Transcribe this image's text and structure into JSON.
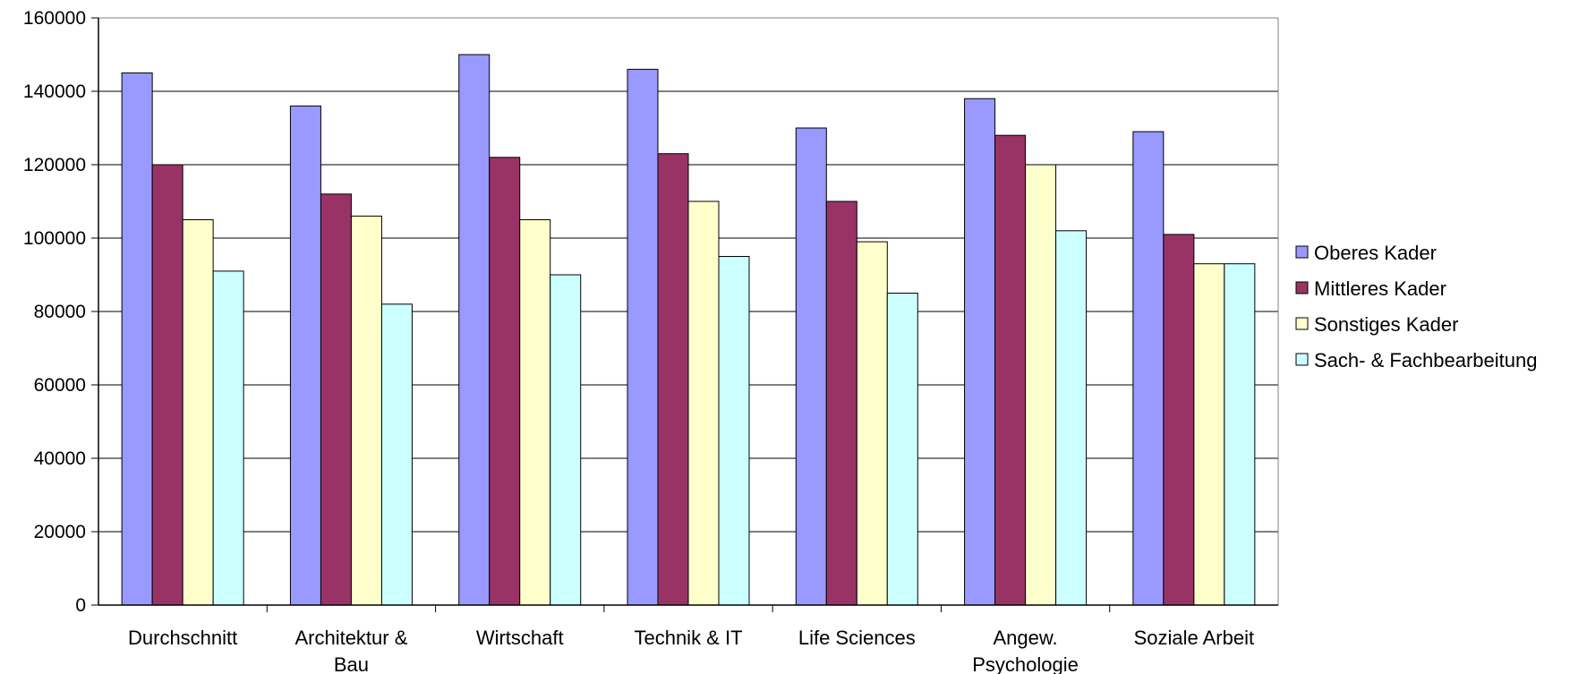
{
  "chart_data": {
    "type": "bar",
    "categories": [
      [
        "Durchschnitt"
      ],
      [
        "Architektur &",
        "Bau"
      ],
      [
        "Wirtschaft"
      ],
      [
        "Technik & IT"
      ],
      [
        "Life Sciences"
      ],
      [
        "Angew.",
        "Psychologie"
      ],
      [
        "Soziale Arbeit"
      ]
    ],
    "series": [
      {
        "name": "Oberes Kader",
        "color": "#9999FF",
        "values": [
          145000,
          136000,
          150000,
          146000,
          130000,
          138000,
          129000
        ]
      },
      {
        "name": "Mittleres Kader",
        "color": "#993366",
        "values": [
          120000,
          112000,
          122000,
          123000,
          110000,
          128000,
          101000
        ]
      },
      {
        "name": "Sonstiges Kader",
        "color": "#FFFFCC",
        "values": [
          105000,
          106000,
          105000,
          110000,
          99000,
          120000,
          93000
        ]
      },
      {
        "name": "Sach- & Fachbearbeitung",
        "color": "#CCFFFF",
        "values": [
          91000,
          82000,
          90000,
          95000,
          85000,
          102000,
          93000
        ]
      }
    ],
    "yticks": [
      "0",
      "20000",
      "40000",
      "60000",
      "80000",
      "100000",
      "120000",
      "140000",
      "160000"
    ],
    "ylim": [
      0,
      160000
    ],
    "grid": true,
    "legend_position": "right"
  }
}
